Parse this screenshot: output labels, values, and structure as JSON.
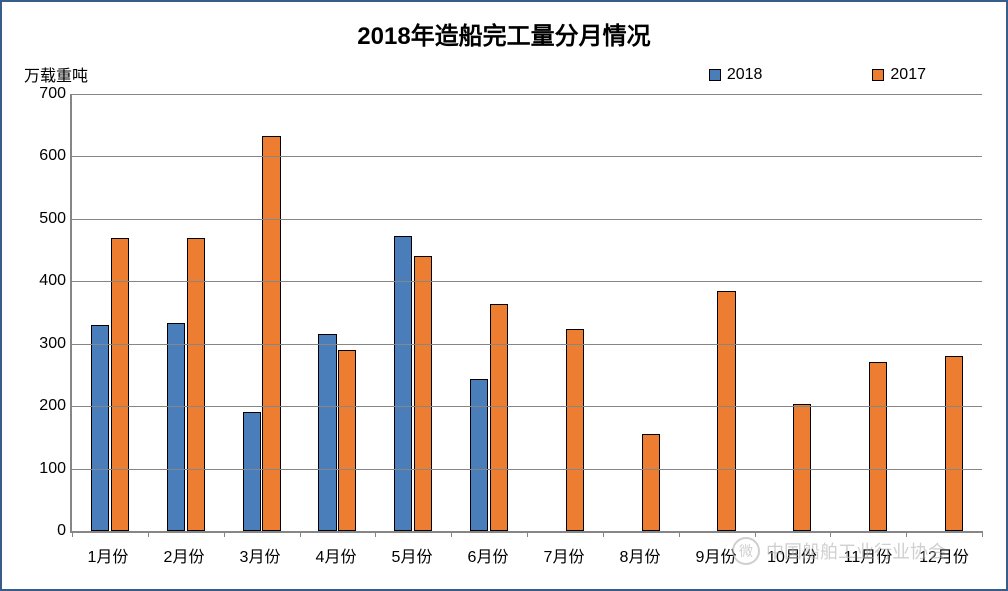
{
  "chart": {
    "type": "bar",
    "title": "2018年造船完工量分月情况",
    "title_fontsize": 24,
    "title_fontweight": "bold",
    "ylabel": "万载重吨",
    "label_fontsize": 16,
    "ylim": [
      0,
      700
    ],
    "ytick_step": 100,
    "yticks": [
      0,
      100,
      200,
      300,
      400,
      500,
      600,
      700
    ],
    "categories": [
      "1月份",
      "2月份",
      "3月份",
      "4月份",
      "5月份",
      "6月份",
      "7月份",
      "8月份",
      "9月份",
      "10月份",
      "11月份",
      "12月份"
    ],
    "series": [
      {
        "name": "2018",
        "color": "#4a7ebb",
        "border": "#000000",
        "values": [
          330,
          333,
          190,
          315,
          473,
          243,
          null,
          null,
          null,
          null,
          null,
          null
        ]
      },
      {
        "name": "2017",
        "color": "#ed7d31",
        "border": "#000000",
        "values": [
          470,
          470,
          632,
          290,
          440,
          363,
          324,
          156,
          385,
          204,
          270,
          280
        ]
      }
    ],
    "legend": {
      "items": [
        {
          "label": "2018",
          "color": "#4a7ebb"
        },
        {
          "label": "2017",
          "color": "#ed7d31"
        }
      ],
      "position": "top-right"
    },
    "background_color": "#ffffff",
    "border_color": "#385d8a",
    "grid_color": "#868686",
    "axis_color": "#868686",
    "bar_group_width": 0.5,
    "bar_gap": 0.02,
    "tick_fontsize": 16
  },
  "watermark": {
    "text": "中国船舶工业行业协会",
    "icon": "wechat-icon",
    "icon_glyph": "微"
  }
}
